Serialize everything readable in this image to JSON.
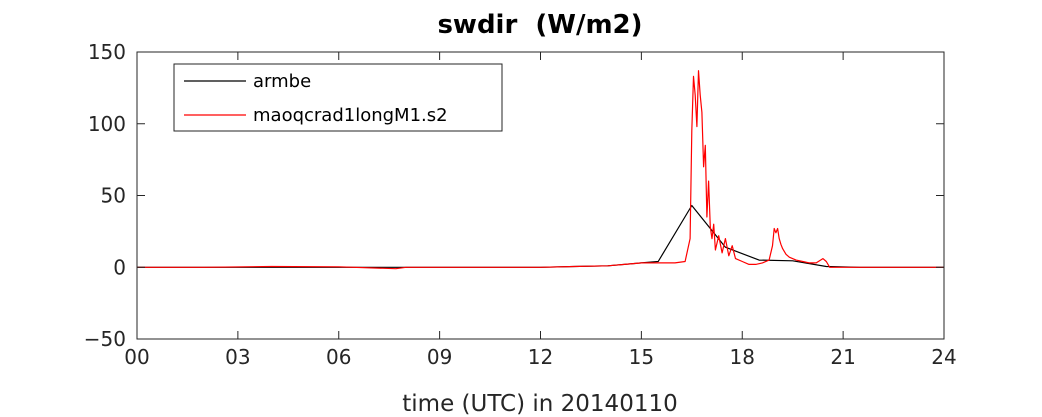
{
  "chart_data": {
    "type": "line",
    "title": "swdir  (W/m2)",
    "xlabel": "time (UTC) in 20140110",
    "ylabel": "",
    "xlim": [
      0,
      24
    ],
    "ylim": [
      -50,
      150
    ],
    "xticks": [
      0,
      3,
      6,
      9,
      12,
      15,
      18,
      21,
      24
    ],
    "xtick_labels": [
      "00",
      "03",
      "06",
      "09",
      "12",
      "15",
      "18",
      "21",
      "24"
    ],
    "yticks": [
      -50,
      0,
      50,
      100,
      150
    ],
    "ytick_labels": [
      "−50",
      "0",
      "50",
      "100",
      "150"
    ],
    "grid": false,
    "legend_position": "top-left",
    "series": [
      {
        "name": "armbe",
        "color": "#000000",
        "x": [
          0,
          1,
          2,
          3,
          4,
          5,
          6,
          7,
          8,
          9,
          10,
          11,
          12,
          13,
          14,
          15,
          15.5,
          16.5,
          17.5,
          18.5,
          19.5,
          20.5,
          21.5,
          22.5,
          23.5,
          24
        ],
        "y": [
          0,
          0,
          0,
          0,
          0,
          0,
          0,
          0,
          0,
          0,
          0,
          0,
          0,
          0.5,
          1,
          3,
          4,
          43,
          14,
          5,
          4.5,
          0.5,
          0,
          0,
          0,
          0
        ]
      },
      {
        "name": "maoqcrad1longM1.s2",
        "color": "#ff0000",
        "x": [
          0,
          2,
          4,
          6,
          7.7,
          8,
          10,
          12,
          13,
          14,
          14.5,
          15,
          15.5,
          16,
          16.3,
          16.45,
          16.5,
          16.55,
          16.6,
          16.65,
          16.7,
          16.75,
          16.8,
          16.85,
          16.9,
          16.95,
          17.0,
          17.05,
          17.1,
          17.15,
          17.2,
          17.3,
          17.4,
          17.5,
          17.6,
          17.7,
          17.8,
          18.0,
          18.2,
          18.4,
          18.6,
          18.8,
          18.9,
          18.95,
          19.0,
          19.05,
          19.1,
          19.15,
          19.2,
          19.3,
          19.4,
          19.6,
          19.8,
          20.0,
          20.2,
          20.4,
          20.5,
          20.6,
          21,
          22,
          23,
          24
        ],
        "y": [
          0,
          0,
          0.5,
          0.3,
          -1,
          0,
          0,
          0,
          0.5,
          1,
          2,
          3,
          3,
          3,
          4,
          20,
          95,
          133,
          120,
          98,
          137,
          120,
          108,
          70,
          85,
          35,
          60,
          28,
          20,
          30,
          12,
          22,
          10,
          20,
          8,
          15,
          6,
          4,
          2,
          2,
          3,
          5,
          15,
          27,
          24,
          27,
          20,
          16,
          13,
          9,
          7,
          5,
          4,
          3,
          3,
          6,
          4,
          0,
          0,
          0,
          0,
          0
        ]
      }
    ]
  }
}
